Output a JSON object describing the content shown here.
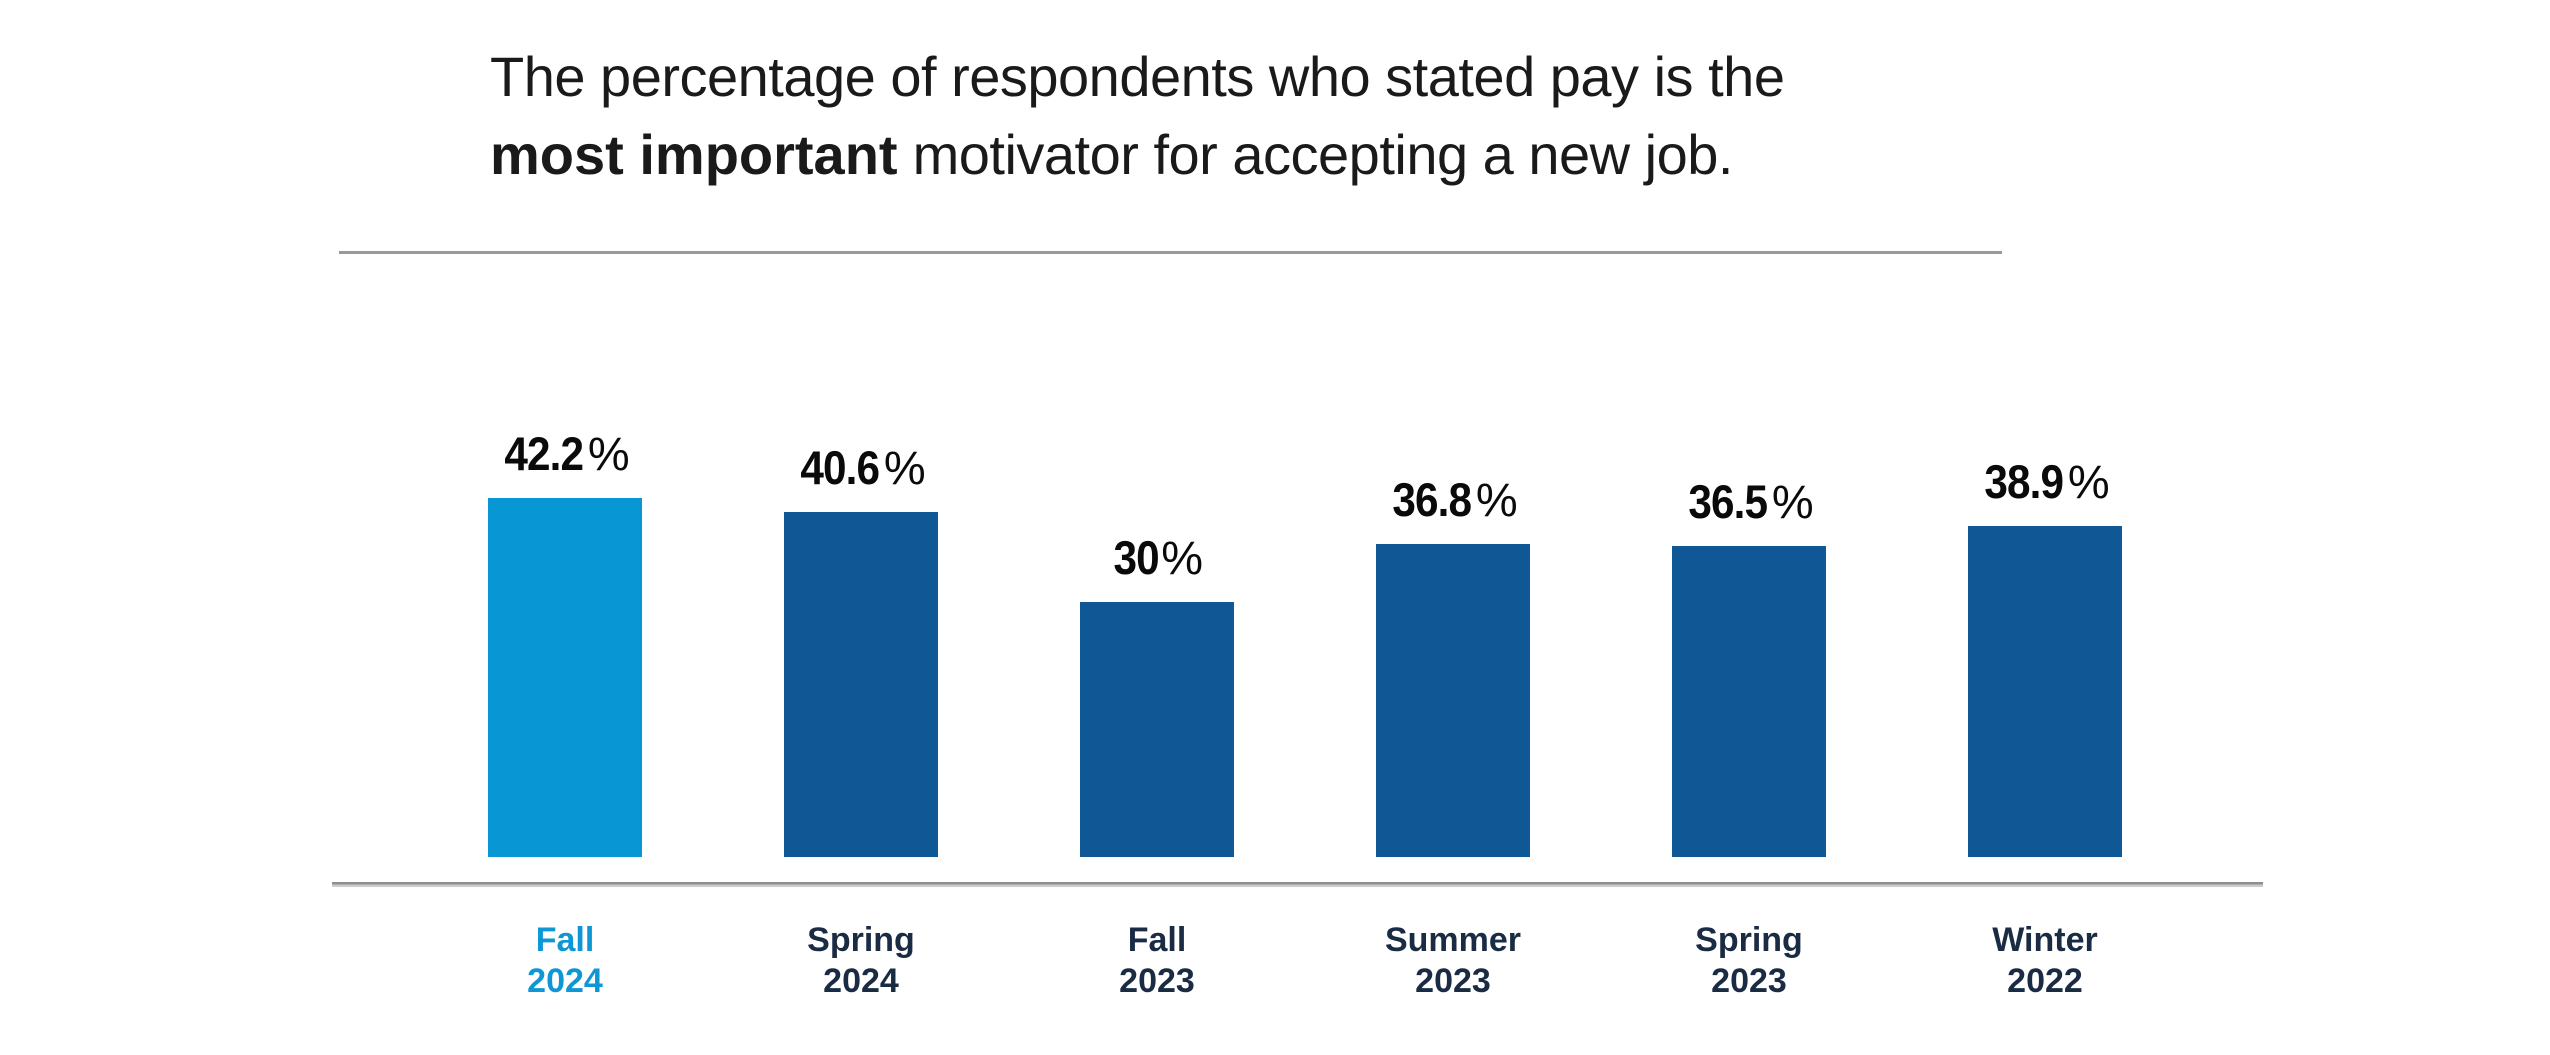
{
  "title": {
    "line1": "The percentage of respondents who stated pay is the",
    "line2_bold": "most important",
    "line2_rest": " motivator for accepting a new job."
  },
  "colors": {
    "bar_highlight_blue": "#0996d5",
    "bar_dark_blue": "#0f5795",
    "category_navy": "#1a2b44",
    "category_highlight_blue": "#0e97d5",
    "value_label_black": "#0a0a0a",
    "divider_gray": "#999999",
    "axis_gray": "#8f8f8f"
  },
  "chart_data": {
    "type": "bar",
    "title": "The percentage of respondents who stated pay is the most important motivator for accepting a new job.",
    "categories": [
      "Fall 2024",
      "Spring 2024",
      "Fall 2023",
      "Summer 2023",
      "Spring 2023",
      "Winter 2022"
    ],
    "values": [
      42.2,
      40.6,
      30,
      36.8,
      36.5,
      38.9
    ],
    "value_labels": [
      "42.2%",
      "40.6%",
      "30%",
      "36.8%",
      "36.5%",
      "38.9%"
    ],
    "highlighted_index": 0,
    "xlabel": "",
    "ylabel": "",
    "ylim": [
      0,
      44
    ],
    "grid": false,
    "legend": false,
    "value_labels_position": "above-bars",
    "orientation": "vertical"
  }
}
